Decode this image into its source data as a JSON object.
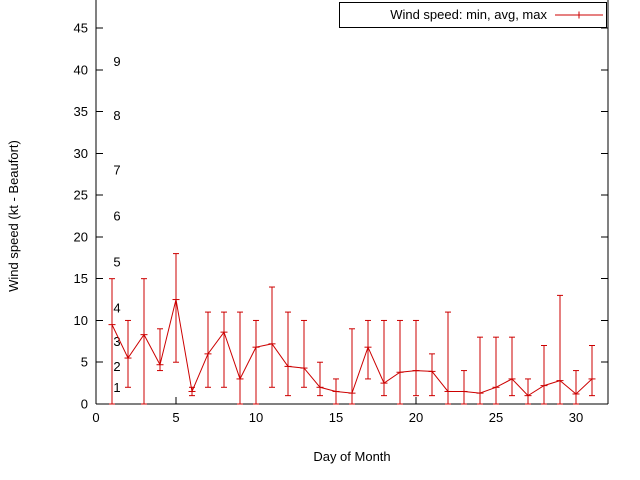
{
  "chart_data": {
    "type": "line",
    "title": "",
    "legend_label": "Wind speed: min, avg, max",
    "xlabel": "Day of Month",
    "ylabel": "Wind speed (kt - Beaufort)",
    "xlim": [
      0,
      32
    ],
    "ylim": [
      0,
      45
    ],
    "grid": false,
    "legend_position": "top-right",
    "series_color": "#cc0000",
    "axis_color": "#000000",
    "x_ticks": [
      0,
      5,
      10,
      15,
      20,
      25,
      30
    ],
    "y_ticks": [
      0,
      5,
      10,
      15,
      20,
      25,
      30,
      35,
      40,
      45
    ],
    "beaufort_labels": [
      {
        "label": "1",
        "kt": 2
      },
      {
        "label": "2",
        "kt": 4.5
      },
      {
        "label": "3",
        "kt": 7.5
      },
      {
        "label": "4",
        "kt": 11.5
      },
      {
        "label": "5",
        "kt": 17
      },
      {
        "label": "6",
        "kt": 22.5
      },
      {
        "label": "7",
        "kt": 28
      },
      {
        "label": "8",
        "kt": 34.5
      },
      {
        "label": "9",
        "kt": 41
      }
    ],
    "x": [
      1,
      2,
      3,
      4,
      5,
      6,
      7,
      8,
      9,
      10,
      11,
      12,
      13,
      14,
      15,
      16,
      17,
      18,
      19,
      20,
      21,
      22,
      23,
      24,
      25,
      26,
      27,
      28,
      29,
      30,
      31
    ],
    "series": [
      {
        "name": "min",
        "values": [
          0,
          2,
          0,
          4,
          5,
          1,
          2,
          2,
          0,
          0,
          2,
          1,
          2,
          1,
          0,
          0,
          3,
          1,
          0,
          1,
          1,
          0,
          0,
          0,
          0,
          1,
          0,
          0,
          0,
          0,
          1
        ]
      },
      {
        "name": "avg",
        "values": [
          9.5,
          5.5,
          8.3,
          4.7,
          12.5,
          1.5,
          6.0,
          8.6,
          3.0,
          6.8,
          7.2,
          4.5,
          4.3,
          2.0,
          1.5,
          1.3,
          6.8,
          2.5,
          3.8,
          4.0,
          3.9,
          1.5,
          1.5,
          1.3,
          2.0,
          3.0,
          1.0,
          2.2,
          2.8,
          1.2,
          3.0
        ]
      },
      {
        "name": "max",
        "values": [
          15,
          10,
          15,
          9,
          18,
          2,
          11,
          11,
          11,
          10,
          14,
          11,
          10,
          5,
          3,
          9,
          10,
          10,
          10,
          10,
          6,
          11,
          4,
          8,
          8,
          8,
          3,
          7,
          13,
          4,
          7
        ]
      }
    ]
  }
}
